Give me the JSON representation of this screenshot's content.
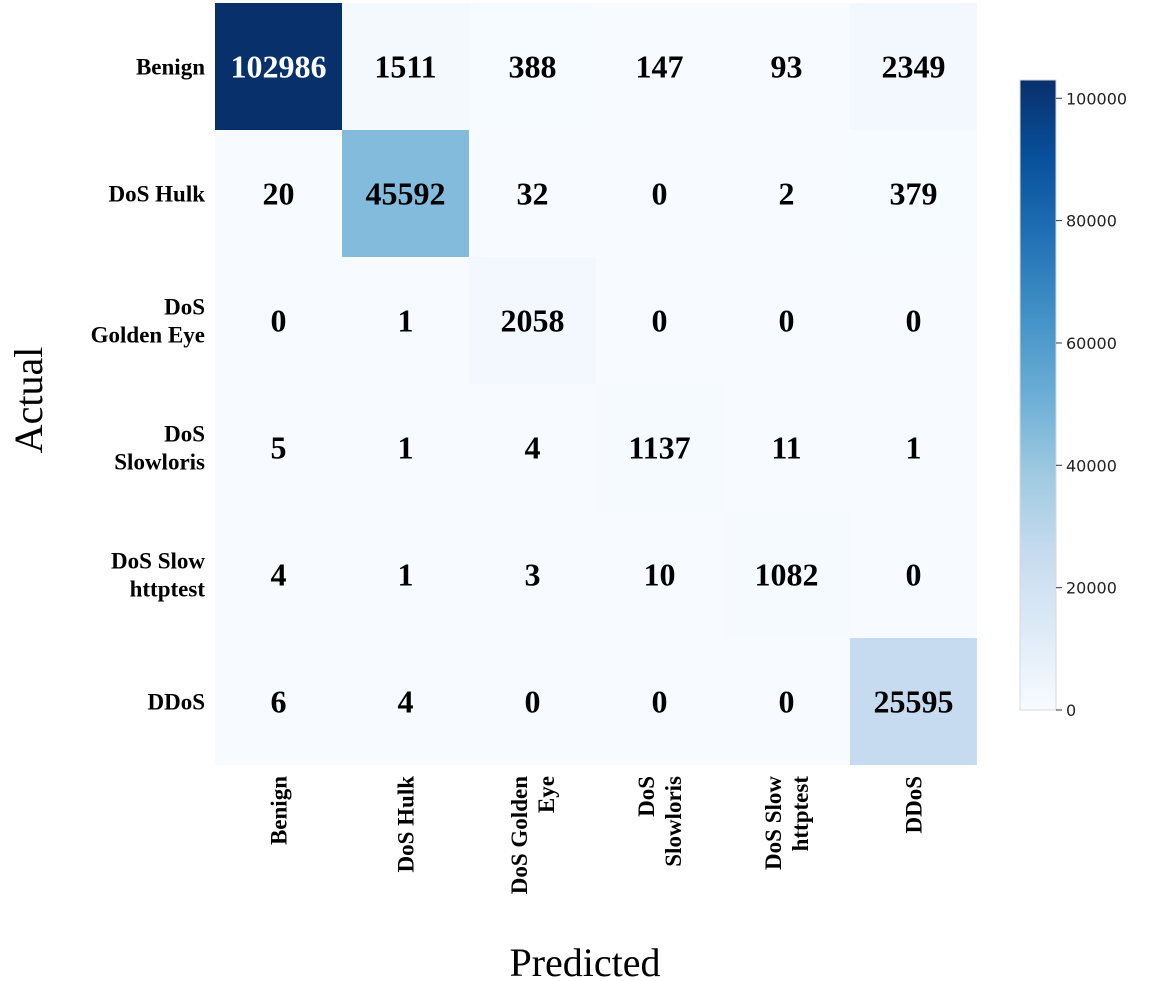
{
  "chart_data": {
    "type": "heatmap",
    "title": "",
    "xlabel": "Predicted",
    "ylabel": "Actual",
    "x_categories": [
      [
        "Benign"
      ],
      [
        "DoS Hulk"
      ],
      [
        "DoS Golden",
        "Eye"
      ],
      [
        "DoS",
        "Slowloris"
      ],
      [
        "DoS Slow",
        "httptest"
      ],
      [
        "DDoS"
      ]
    ],
    "y_categories": [
      [
        "Benign"
      ],
      [
        "DoS Hulk"
      ],
      [
        "DoS",
        "Golden Eye"
      ],
      [
        "DoS",
        "Slowloris"
      ],
      [
        "DoS Slow",
        "httptest"
      ],
      [
        "DDoS"
      ]
    ],
    "matrix": [
      [
        102986,
        1511,
        388,
        147,
        93,
        2349
      ],
      [
        20,
        45592,
        32,
        0,
        2,
        379
      ],
      [
        0,
        1,
        2058,
        0,
        0,
        0
      ],
      [
        5,
        1,
        4,
        1137,
        11,
        1
      ],
      [
        4,
        1,
        3,
        10,
        1082,
        0
      ],
      [
        6,
        4,
        0,
        0,
        0,
        25595
      ]
    ],
    "colorbar": {
      "colormap": "Blues",
      "min": 0,
      "max": 102986,
      "ticks": [
        0,
        20000,
        40000,
        60000,
        80000,
        100000
      ],
      "tick_labels": [
        "0",
        "20000",
        "40000",
        "60000",
        "80000",
        "100000"
      ]
    },
    "grid": false,
    "legend": "colorbar-right"
  }
}
